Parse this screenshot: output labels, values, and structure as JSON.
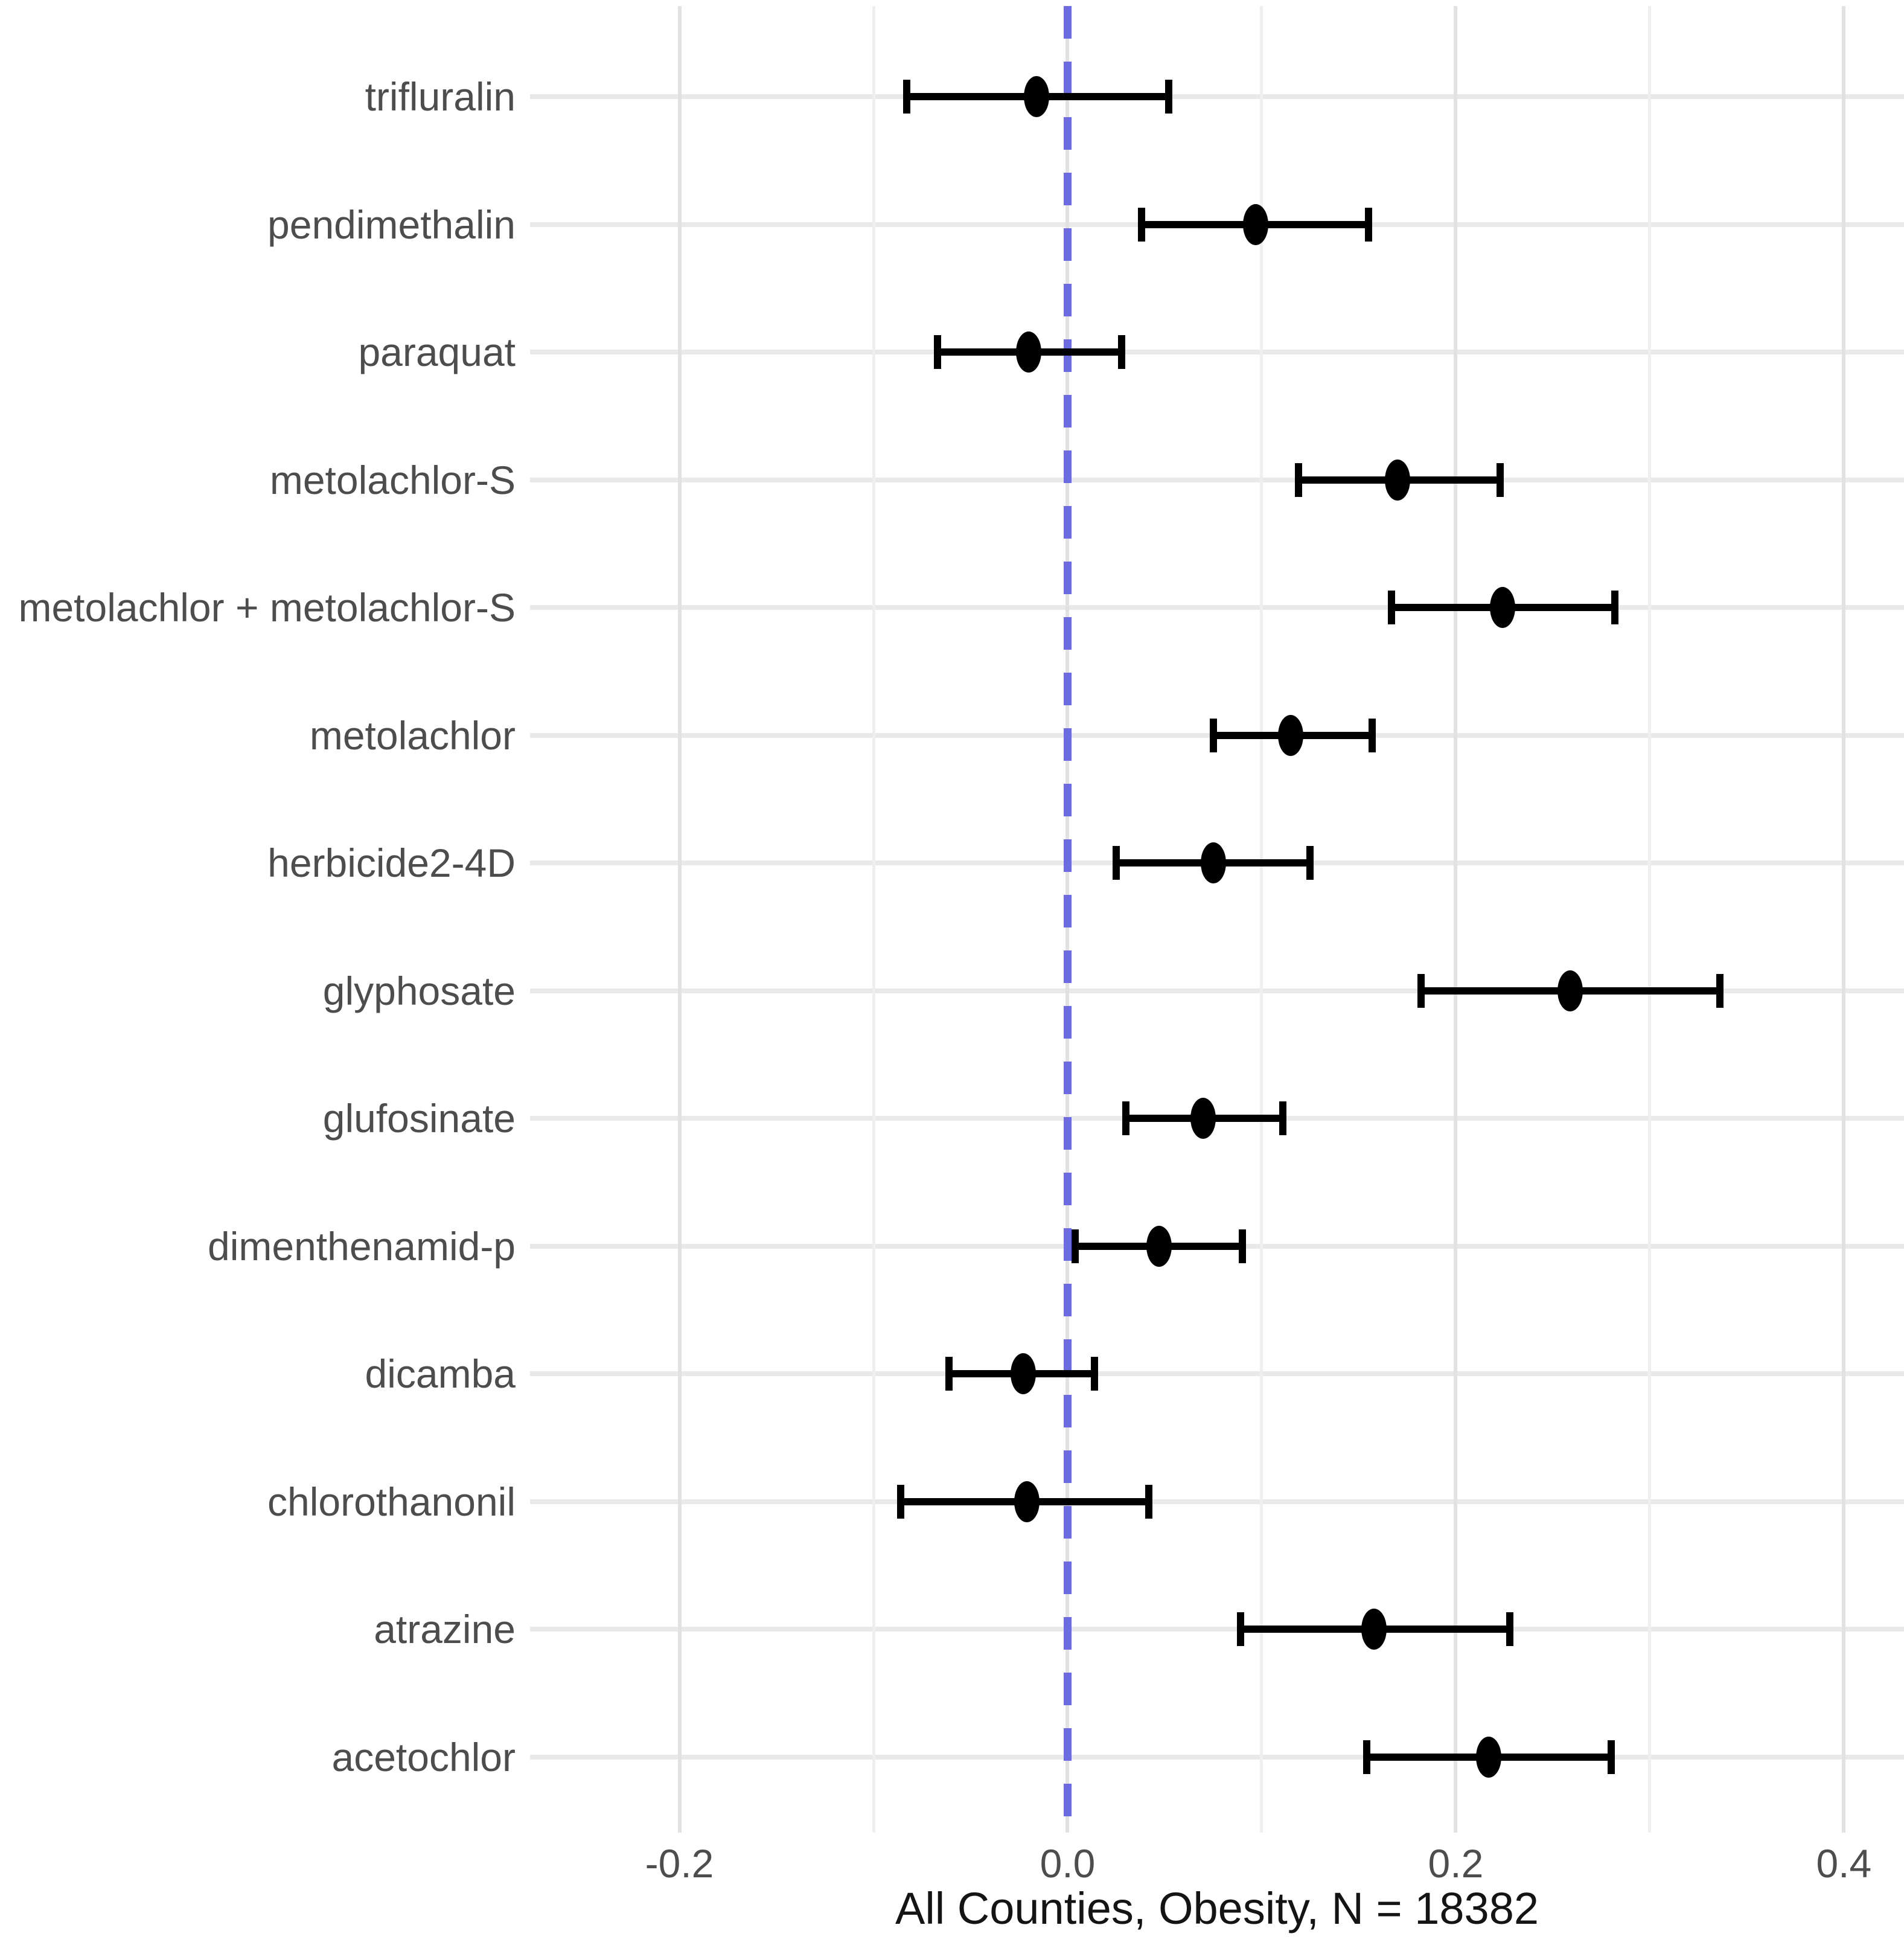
{
  "figure": {
    "background": "#ffffff"
  },
  "chart_data": {
    "type": "scatter",
    "subtype": "forest-plot-errorbars",
    "title": "",
    "xlabel": "All Counties, Obesity, N = 18382",
    "ylabel": "",
    "x_domain": [
      -0.277,
      0.431
    ],
    "x_ticks": [
      {
        "value": -0.2,
        "label": "-0.2"
      },
      {
        "value": 0.0,
        "label": "0.0"
      },
      {
        "value": 0.2,
        "label": "0.2"
      },
      {
        "value": 0.4,
        "label": "0.4"
      }
    ],
    "x_minor_ticks": [
      -0.1,
      0.1,
      0.3
    ],
    "grid": "major+minor",
    "legend": "none",
    "reference_line": {
      "x": 0.0,
      "style": "dashed",
      "color": "#6c6ce0"
    },
    "categories": [
      "trifluralin",
      "pendimethalin",
      "paraquat",
      "metolachlor-S",
      "metolachlor + metolachlor-S",
      "metolachlor",
      "herbicide2-4D",
      "glyphosate",
      "glufosinate",
      "dimenthenamid-p",
      "dicamba",
      "chlorothanonil",
      "atrazine",
      "acetochlor"
    ],
    "series": [
      {
        "name": "coefficient",
        "marker": "ellipse",
        "color": "#000000",
        "points": [
          {
            "category": "trifluralin",
            "estimate": -0.016,
            "ci_low": -0.083,
            "ci_high": 0.052
          },
          {
            "category": "pendimethalin",
            "estimate": 0.097,
            "ci_low": 0.038,
            "ci_high": 0.155
          },
          {
            "category": "paraquat",
            "estimate": -0.02,
            "ci_low": -0.067,
            "ci_high": 0.028
          },
          {
            "category": "metolachlor-S",
            "estimate": 0.17,
            "ci_low": 0.119,
            "ci_high": 0.223
          },
          {
            "category": "metolachlor + metolachlor-S",
            "estimate": 0.224,
            "ci_low": 0.167,
            "ci_high": 0.282
          },
          {
            "category": "metolachlor",
            "estimate": 0.115,
            "ci_low": 0.075,
            "ci_high": 0.157
          },
          {
            "category": "herbicide2-4D",
            "estimate": 0.075,
            "ci_low": 0.025,
            "ci_high": 0.125
          },
          {
            "category": "glyphosate",
            "estimate": 0.259,
            "ci_low": 0.182,
            "ci_high": 0.336
          },
          {
            "category": "glufosinate",
            "estimate": 0.07,
            "ci_low": 0.03,
            "ci_high": 0.111
          },
          {
            "category": "dimenthenamid-p",
            "estimate": 0.047,
            "ci_low": 0.004,
            "ci_high": 0.09
          },
          {
            "category": "dicamba",
            "estimate": -0.023,
            "ci_low": -0.061,
            "ci_high": 0.014
          },
          {
            "category": "chlorothanonil",
            "estimate": -0.021,
            "ci_low": -0.086,
            "ci_high": 0.042
          },
          {
            "category": "atrazine",
            "estimate": 0.158,
            "ci_low": 0.089,
            "ci_high": 0.228
          },
          {
            "category": "acetochlor",
            "estimate": 0.217,
            "ci_low": 0.154,
            "ci_high": 0.28
          }
        ]
      }
    ]
  },
  "colors": {
    "grid_major": "#e2e2e2",
    "grid_minor": "#efefef",
    "row_line": "#e9e9e9",
    "reference_line": "#6c6ce0",
    "errorbar": "#000000",
    "axis_text": "#4d4d4d",
    "axis_title": "#141414"
  }
}
